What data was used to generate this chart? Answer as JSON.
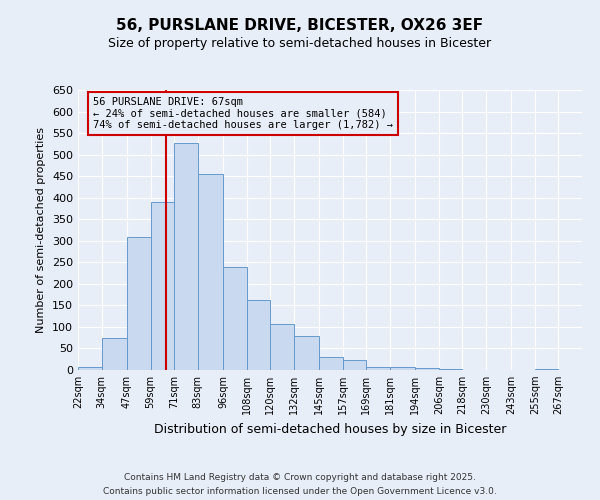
{
  "title_line1": "56, PURSLANE DRIVE, BICESTER, OX26 3EF",
  "title_line2": "Size of property relative to semi-detached houses in Bicester",
  "xlabel": "Distribution of semi-detached houses by size in Bicester",
  "ylabel": "Number of semi-detached properties",
  "bin_labels": [
    "22sqm",
    "34sqm",
    "47sqm",
    "59sqm",
    "71sqm",
    "83sqm",
    "96sqm",
    "108sqm",
    "120sqm",
    "132sqm",
    "145sqm",
    "157sqm",
    "169sqm",
    "181sqm",
    "194sqm",
    "206sqm",
    "218sqm",
    "230sqm",
    "243sqm",
    "255sqm",
    "267sqm"
  ],
  "bin_edges": [
    22,
    34,
    47,
    59,
    71,
    83,
    96,
    108,
    120,
    132,
    145,
    157,
    169,
    181,
    194,
    206,
    218,
    230,
    243,
    255,
    267,
    279
  ],
  "counts": [
    8,
    75,
    308,
    390,
    527,
    455,
    238,
    162,
    107,
    78,
    30,
    23,
    8,
    8,
    5,
    2,
    0,
    0,
    0,
    2,
    0
  ],
  "bar_color": "#c9d9f0",
  "bar_edge_color": "#6699cc",
  "property_size": 67,
  "marker_color": "#cc0000",
  "annotation_text": "56 PURSLANE DRIVE: 67sqm\n← 24% of semi-detached houses are smaller (584)\n74% of semi-detached houses are larger (1,782) →",
  "annotation_box_edge_color": "#cc0000",
  "ylim": [
    0,
    650
  ],
  "yticks": [
    0,
    50,
    100,
    150,
    200,
    250,
    300,
    350,
    400,
    450,
    500,
    550,
    600,
    650
  ],
  "background_color": "#e8eef8",
  "grid_color": "#ffffff",
  "footer_line1": "Contains HM Land Registry data © Crown copyright and database right 2025.",
  "footer_line2": "Contains public sector information licensed under the Open Government Licence v3.0."
}
